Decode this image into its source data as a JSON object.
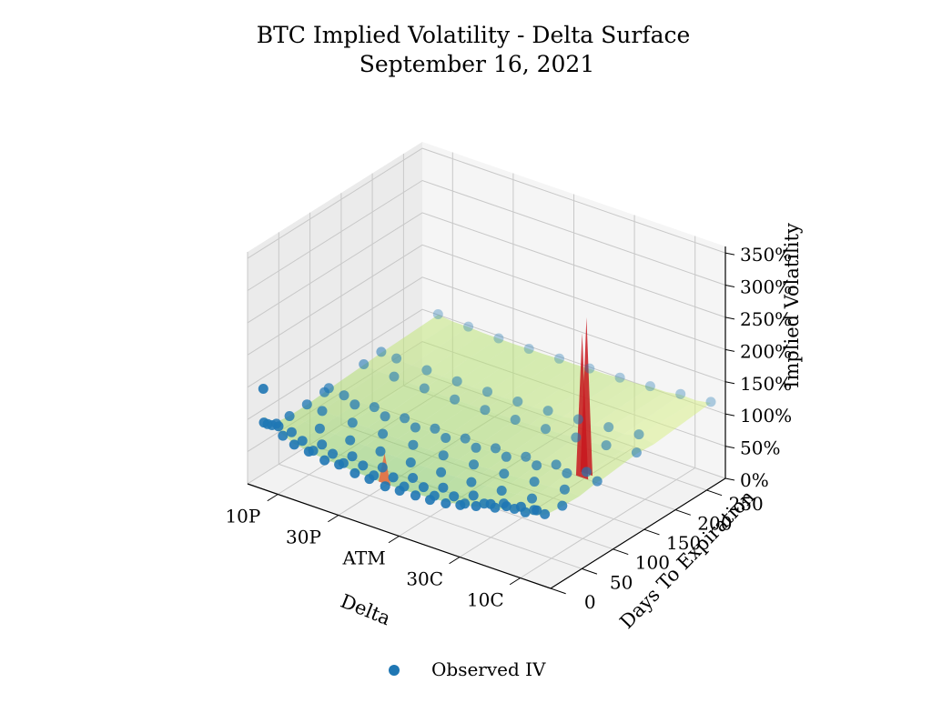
{
  "chart_data": {
    "type": "surface3d",
    "title": "BTC Implied Volatility - Delta Surface",
    "subtitle": "September 16, 2021",
    "xlabel": "Delta",
    "ylabel": "Days To Expiration",
    "zlabel": "Implied Volatility",
    "x_ticks": [
      "10P",
      "30P",
      "ATM",
      "30C",
      "10C"
    ],
    "y_ticks": [
      "0",
      "50",
      "100",
      "150",
      "200",
      "250"
    ],
    "z_ticks": [
      "0%",
      "50%",
      "100%",
      "150%",
      "200%",
      "250%",
      "300%",
      "350%"
    ],
    "xlim": [
      0,
      100
    ],
    "ylim": [
      0,
      280
    ],
    "zlim": [
      0,
      3.6
    ],
    "grid": true,
    "legend": {
      "position": "bottom-center",
      "entries": [
        "Observed IV"
      ]
    },
    "series": [
      {
        "name": "Observed IV",
        "kind": "scatter",
        "color": "#1f77b4"
      }
    ],
    "surface_colormap": [
      "#006837",
      "#1a9850",
      "#66bd63",
      "#a6d96a",
      "#d9ef8b",
      "#ffffbf",
      "#fee08b",
      "#fdae61",
      "#f46d43",
      "#d73027",
      "#a50026"
    ],
    "expirations": [
      1,
      2,
      8,
      15,
      22,
      43,
      71,
      99,
      106,
      162,
      190,
      281
    ],
    "deltas": [
      5,
      10,
      15,
      20,
      25,
      30,
      35,
      40,
      45,
      50,
      55,
      60,
      65,
      70,
      75,
      80,
      85,
      90,
      95
    ],
    "points": [
      [
        5,
        1,
        1.55
      ],
      [
        10,
        1,
        1.05
      ],
      [
        20,
        1,
        0.82
      ],
      [
        30,
        1,
        0.78
      ],
      [
        40,
        1,
        0.72
      ],
      [
        50,
        1,
        0.7
      ],
      [
        60,
        1,
        0.72
      ],
      [
        70,
        1,
        0.8
      ],
      [
        80,
        1,
        0.98
      ],
      [
        90,
        1,
        1.1
      ],
      [
        5,
        2,
        1.02
      ],
      [
        15,
        2,
        0.84
      ],
      [
        25,
        2,
        0.76
      ],
      [
        35,
        2,
        0.72
      ],
      [
        45,
        2,
        0.68
      ],
      [
        55,
        2,
        0.7
      ],
      [
        65,
        2,
        0.74
      ],
      [
        75,
        2,
        0.86
      ],
      [
        85,
        2,
        1.02
      ],
      [
        95,
        2,
        1.12
      ],
      [
        5,
        8,
        0.96
      ],
      [
        10,
        8,
        0.86
      ],
      [
        20,
        8,
        0.79
      ],
      [
        30,
        8,
        0.76
      ],
      [
        40,
        8,
        0.73
      ],
      [
        50,
        8,
        0.72
      ],
      [
        60,
        8,
        0.74
      ],
      [
        70,
        8,
        0.78
      ],
      [
        80,
        8,
        0.88
      ],
      [
        90,
        8,
        0.97
      ],
      [
        5,
        15,
        0.9
      ],
      [
        15,
        15,
        0.82
      ],
      [
        25,
        15,
        0.78
      ],
      [
        35,
        15,
        0.76
      ],
      [
        45,
        15,
        0.74
      ],
      [
        55,
        15,
        0.75
      ],
      [
        65,
        15,
        0.77
      ],
      [
        75,
        15,
        0.82
      ],
      [
        85,
        15,
        0.9
      ],
      [
        95,
        15,
        0.98
      ],
      [
        5,
        22,
        0.88
      ],
      [
        10,
        22,
        0.83
      ],
      [
        20,
        22,
        0.8
      ],
      [
        30,
        22,
        0.78
      ],
      [
        40,
        22,
        0.77
      ],
      [
        50,
        22,
        0.77
      ],
      [
        60,
        22,
        0.78
      ],
      [
        70,
        22,
        0.82
      ],
      [
        80,
        22,
        0.86
      ],
      [
        90,
        22,
        0.92
      ],
      [
        5,
        43,
        0.87
      ],
      [
        15,
        43,
        0.84
      ],
      [
        25,
        43,
        0.82
      ],
      [
        35,
        43,
        0.81
      ],
      [
        45,
        43,
        0.8
      ],
      [
        55,
        43,
        0.81
      ],
      [
        65,
        43,
        0.82
      ],
      [
        75,
        43,
        0.85
      ],
      [
        85,
        43,
        0.89
      ],
      [
        95,
        43,
        0.94
      ],
      [
        5,
        71,
        0.88
      ],
      [
        10,
        71,
        0.86
      ],
      [
        20,
        71,
        0.84
      ],
      [
        30,
        71,
        0.83
      ],
      [
        40,
        71,
        0.82
      ],
      [
        50,
        71,
        0.82
      ],
      [
        60,
        71,
        0.84
      ],
      [
        70,
        71,
        0.86
      ],
      [
        80,
        71,
        0.9
      ],
      [
        90,
        71,
        0.94
      ],
      [
        5,
        99,
        0.9
      ],
      [
        15,
        99,
        0.87
      ],
      [
        25,
        99,
        0.85
      ],
      [
        35,
        99,
        0.84
      ],
      [
        45,
        99,
        0.84
      ],
      [
        55,
        99,
        0.85
      ],
      [
        65,
        99,
        0.87
      ],
      [
        75,
        99,
        0.9
      ],
      [
        85,
        99,
        0.94
      ],
      [
        95,
        99,
        0.98
      ],
      [
        5,
        106,
        0.92
      ],
      [
        10,
        106,
        0.89
      ],
      [
        20,
        106,
        0.87
      ],
      [
        30,
        106,
        0.86
      ],
      [
        40,
        106,
        0.86
      ],
      [
        50,
        106,
        0.87
      ],
      [
        60,
        106,
        0.88
      ],
      [
        70,
        106,
        0.91
      ],
      [
        80,
        106,
        0.95
      ],
      [
        90,
        106,
        1.0
      ],
      [
        5,
        162,
        0.95
      ],
      [
        15,
        162,
        0.92
      ],
      [
        25,
        162,
        0.9
      ],
      [
        35,
        162,
        0.89
      ],
      [
        45,
        162,
        0.89
      ],
      [
        55,
        162,
        0.9
      ],
      [
        65,
        162,
        0.92
      ],
      [
        75,
        162,
        0.95
      ],
      [
        85,
        162,
        0.99
      ],
      [
        95,
        162,
        1.04
      ],
      [
        5,
        190,
        0.97
      ],
      [
        10,
        190,
        0.95
      ],
      [
        20,
        190,
        0.93
      ],
      [
        30,
        190,
        0.92
      ],
      [
        40,
        190,
        0.92
      ],
      [
        50,
        190,
        0.93
      ],
      [
        60,
        190,
        0.95
      ],
      [
        70,
        190,
        0.98
      ],
      [
        80,
        190,
        1.02
      ],
      [
        90,
        190,
        1.07
      ],
      [
        5,
        281,
        1.0
      ],
      [
        15,
        281,
        0.97
      ],
      [
        25,
        281,
        0.95
      ],
      [
        35,
        281,
        0.95
      ],
      [
        45,
        281,
        0.96
      ],
      [
        55,
        281,
        0.97
      ],
      [
        65,
        281,
        0.99
      ],
      [
        75,
        281,
        1.02
      ],
      [
        85,
        281,
        1.06
      ],
      [
        95,
        281,
        1.1
      ]
    ],
    "spikes": [
      {
        "delta": 45,
        "days": 1,
        "iv": 1.2
      },
      {
        "delta": 90,
        "days": 106,
        "iv": 3.4
      },
      {
        "delta": 90,
        "days": 99,
        "iv": 3.2
      }
    ]
  }
}
